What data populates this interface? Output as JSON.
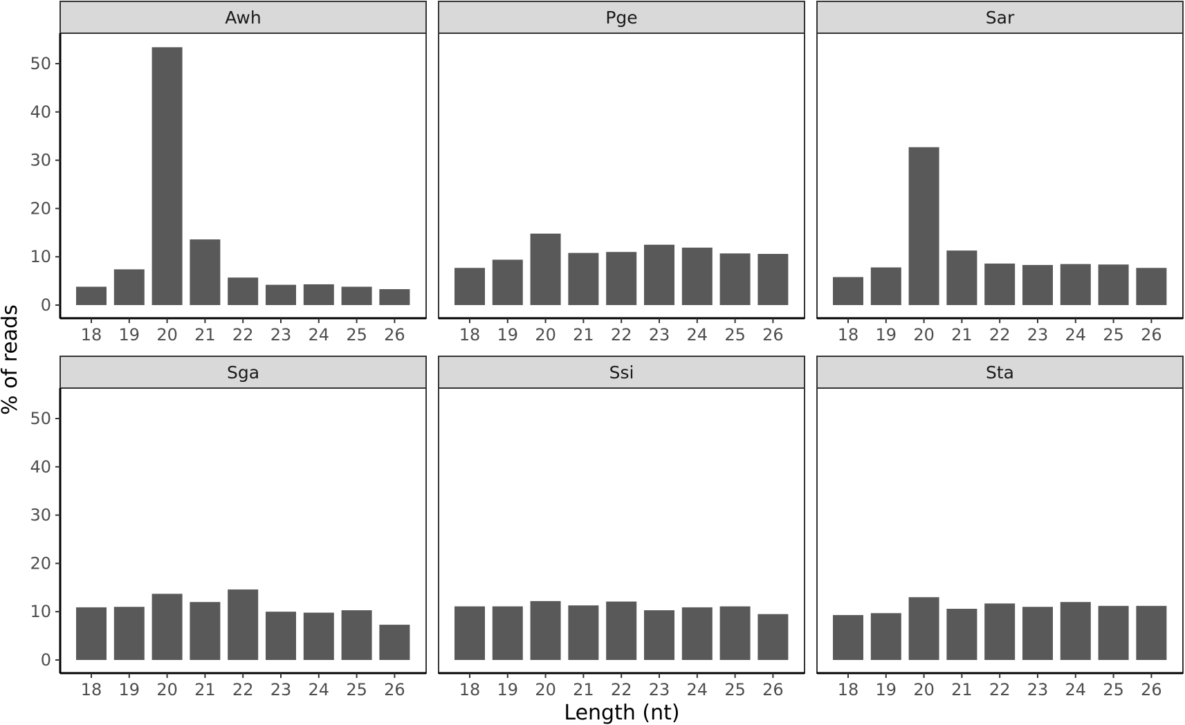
{
  "chart_data": {
    "type": "bar",
    "layout": "facet_wrap",
    "ncol": 3,
    "xlabel": "Length (nt)",
    "ylabel": "% of reads",
    "categories": [
      "18",
      "19",
      "20",
      "21",
      "22",
      "23",
      "24",
      "25",
      "26"
    ],
    "ylim": [
      0,
      55
    ],
    "yticks": [
      0,
      10,
      20,
      30,
      40,
      50
    ],
    "bar_color": "#595959",
    "strip_color": "#d9d9d9",
    "grid": false,
    "panels": [
      {
        "name": "Awh",
        "values": [
          3.8,
          7.4,
          53.4,
          13.6,
          5.7,
          4.2,
          4.3,
          3.8,
          3.3
        ]
      },
      {
        "name": "Pge",
        "values": [
          7.7,
          9.4,
          14.8,
          10.8,
          11.0,
          12.5,
          11.9,
          10.7,
          10.6
        ]
      },
      {
        "name": "Sar",
        "values": [
          5.8,
          7.8,
          32.7,
          11.3,
          8.6,
          8.3,
          8.5,
          8.4,
          7.7
        ]
      },
      {
        "name": "Sga",
        "values": [
          10.9,
          11.0,
          13.7,
          12.0,
          14.6,
          10.0,
          9.8,
          10.3,
          7.3
        ]
      },
      {
        "name": "Ssi",
        "values": [
          11.1,
          11.1,
          12.2,
          11.3,
          12.1,
          10.3,
          10.9,
          11.1,
          9.5
        ]
      },
      {
        "name": "Sta",
        "values": [
          9.3,
          9.7,
          13.0,
          10.6,
          11.7,
          11.0,
          12.0,
          11.2,
          11.2
        ]
      }
    ]
  }
}
